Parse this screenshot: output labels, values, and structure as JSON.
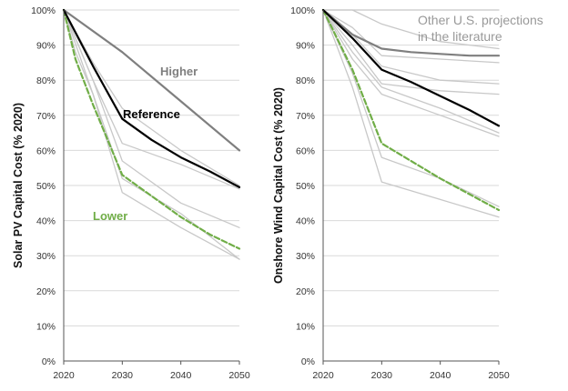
{
  "colors": {
    "literature": "#c8c8c8",
    "higher": "#7f7f7f",
    "reference": "#000000",
    "lower": "#70ad47",
    "grid": "#d9d9d9",
    "axis": "#555555"
  },
  "chart_data": [
    {
      "type": "line",
      "ylabel": "Solar PV Capital Cost (% 2020)",
      "x_ticks": [
        "2020",
        "2030",
        "2040",
        "2050"
      ],
      "y_ticks": [
        "0%",
        "10%",
        "20%",
        "30%",
        "40%",
        "50%",
        "60%",
        "70%",
        "80%",
        "90%",
        "100%"
      ],
      "xlim": [
        2020,
        2050
      ],
      "ylim": [
        0,
        100
      ],
      "grid": "horizontal",
      "series": [
        {
          "name": "Higher",
          "role": "higher",
          "x": [
            2020,
            2030,
            2040,
            2050
          ],
          "values": [
            100,
            88,
            74,
            60
          ]
        },
        {
          "name": "Reference",
          "role": "reference",
          "x": [
            2020,
            2025,
            2030,
            2035,
            2040,
            2045,
            2050
          ],
          "values": [
            100,
            84,
            69,
            63,
            58,
            54,
            49.5
          ]
        },
        {
          "name": "Lower",
          "role": "lower",
          "x": [
            2020,
            2022,
            2025,
            2030,
            2035,
            2040,
            2045,
            2050
          ],
          "values": [
            100,
            86,
            73,
            53,
            47,
            41,
            36,
            32
          ]
        },
        {
          "role": "literature",
          "x": [
            2020,
            2022,
            2025,
            2030,
            2040,
            2050
          ],
          "values": [
            100,
            88,
            76,
            48,
            38,
            29
          ]
        },
        {
          "role": "literature",
          "x": [
            2020,
            2025,
            2030,
            2040,
            2050
          ],
          "values": [
            100,
            76,
            52,
            42,
            29
          ]
        },
        {
          "role": "literature",
          "x": [
            2020,
            2025,
            2030,
            2040,
            2050
          ],
          "values": [
            100,
            80,
            57,
            45,
            38
          ]
        },
        {
          "role": "literature",
          "x": [
            2020,
            2025,
            2030,
            2040,
            2050
          ],
          "values": [
            100,
            80,
            62,
            56,
            49
          ]
        },
        {
          "role": "literature",
          "x": [
            2020,
            2025,
            2030,
            2040,
            2050
          ],
          "values": [
            100,
            85,
            72,
            60,
            50
          ]
        }
      ],
      "annotations": [
        "Higher",
        "Reference",
        "Lower"
      ]
    },
    {
      "type": "line",
      "ylabel": "Onshore Wind Capital Cost (% 2020)",
      "x_ticks": [
        "2020",
        "2030",
        "2040",
        "2050"
      ],
      "y_ticks": [
        "0%",
        "10%",
        "20%",
        "30%",
        "40%",
        "50%",
        "60%",
        "70%",
        "80%",
        "90%",
        "100%"
      ],
      "xlim": [
        2020,
        2050
      ],
      "ylim": [
        0,
        100
      ],
      "grid": "horizontal",
      "series": [
        {
          "name": "Higher",
          "role": "higher",
          "x": [
            2020,
            2025,
            2030,
            2035,
            2040,
            2045,
            2050
          ],
          "values": [
            100,
            93,
            89,
            88,
            87.5,
            87,
            87
          ]
        },
        {
          "name": "Reference",
          "role": "reference",
          "x": [
            2020,
            2025,
            2030,
            2035,
            2040,
            2045,
            2050
          ],
          "values": [
            100,
            92,
            83,
            79.5,
            75.5,
            71.5,
            67
          ]
        },
        {
          "name": "Lower",
          "role": "lower",
          "x": [
            2020,
            2025,
            2030,
            2040,
            2050
          ],
          "values": [
            100,
            83,
            62,
            52,
            43
          ]
        },
        {
          "role": "literature",
          "x": [
            2020,
            2025,
            2030,
            2040,
            2050
          ],
          "values": [
            100,
            100,
            100,
            100,
            100
          ]
        },
        {
          "role": "literature",
          "x": [
            2020,
            2025,
            2030,
            2040,
            2050
          ],
          "values": [
            100,
            100,
            96,
            91,
            89
          ]
        },
        {
          "role": "literature",
          "x": [
            2020,
            2025,
            2030,
            2040,
            2050
          ],
          "values": [
            100,
            95,
            87,
            86,
            85
          ]
        },
        {
          "role": "literature",
          "x": [
            2020,
            2025,
            2030,
            2040,
            2050
          ],
          "values": [
            100,
            93,
            84,
            80,
            79
          ]
        },
        {
          "role": "literature",
          "x": [
            2020,
            2025,
            2030,
            2040,
            2050
          ],
          "values": [
            100,
            90,
            79,
            77,
            76
          ]
        },
        {
          "role": "literature",
          "x": [
            2020,
            2025,
            2030,
            2040,
            2050
          ],
          "values": [
            100,
            88,
            78,
            72,
            65
          ]
        },
        {
          "role": "literature",
          "x": [
            2020,
            2025,
            2030,
            2040,
            2050
          ],
          "values": [
            100,
            86,
            76,
            70,
            64
          ]
        },
        {
          "role": "literature",
          "x": [
            2020,
            2025,
            2030,
            2040,
            2050
          ],
          "values": [
            100,
            82,
            58,
            52,
            44
          ]
        },
        {
          "role": "literature",
          "x": [
            2020,
            2025,
            2030,
            2040,
            2050
          ],
          "values": [
            100,
            78,
            51,
            46,
            41
          ]
        }
      ],
      "annotations": [
        "Other U.S. projections",
        "in the literature"
      ]
    }
  ]
}
